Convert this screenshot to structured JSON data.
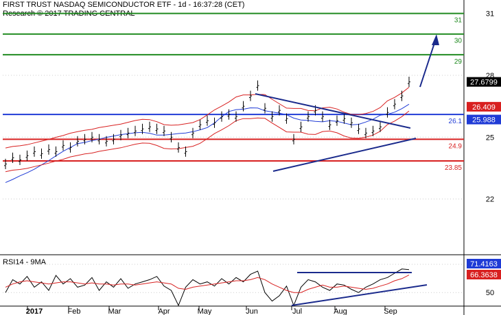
{
  "header": {
    "title": "FIRST TRUST NASDAQ SEMICONDUCTOR ETF - 1d - 16:37:28 (CET)",
    "copyright": "Research © 2017 TRADING CENTRAL"
  },
  "chart_data": [
    {
      "type": "line",
      "panel": "price",
      "grid": false,
      "ylim": [
        19.3,
        31.65
      ],
      "y_ticks": [
        "31",
        "28",
        "25",
        "22"
      ],
      "y_tick_values": [
        31,
        28,
        25,
        22
      ],
      "close": [
        23.7,
        24.0,
        23.9,
        24.1,
        24.3,
        24.2,
        24.4,
        24.3,
        24.6,
        24.5,
        24.8,
        24.9,
        25.0,
        24.9,
        24.8,
        24.9,
        25.1,
        25.2,
        25.3,
        25.4,
        25.5,
        25.4,
        25.3,
        25.0,
        24.5,
        24.3,
        25.2,
        25.6,
        25.8,
        25.7,
        26.0,
        26.1,
        26.0,
        26.5,
        27.0,
        27.5,
        26.4,
        26.0,
        26.3,
        25.9,
        24.9,
        25.5,
        26.0,
        26.3,
        26.0,
        25.6,
        25.8,
        25.9,
        25.7,
        25.4,
        25.2,
        25.3,
        25.5,
        26.2,
        26.6,
        27.0,
        27.68
      ],
      "x_month_labels": [
        "2017",
        "Feb",
        "Mar",
        "Apr",
        "May",
        "Jun",
        "Jul",
        "Aug",
        "Sep"
      ],
      "support_resistance": [
        {
          "label": "31",
          "value": 31.0,
          "color": "#1f8a1f"
        },
        {
          "label": "30",
          "value": 30.0,
          "color": "#1f8a1f"
        },
        {
          "label": "29",
          "value": 29.0,
          "color": "#1f8a1f"
        },
        {
          "label": "26.1",
          "value": 26.1,
          "color": "#1f3bd6"
        },
        {
          "label": "24.9",
          "value": 24.9,
          "color": "#d82020"
        },
        {
          "label": "23.85",
          "value": 23.85,
          "color": "#d82020"
        }
      ],
      "price_tags": [
        {
          "label": "27.6799",
          "value": 27.68,
          "bg": "#000000",
          "fg": "#ffffff"
        },
        {
          "label": "26.409",
          "value": 26.409,
          "bg": "#d82020",
          "fg": "#ffffff"
        },
        {
          "label": "25.988",
          "value": 25.988,
          "bg": "#1f3bd6",
          "fg": "#ffffff"
        }
      ]
    },
    {
      "type": "line",
      "panel": "indicator",
      "title": "RSI14 - 9MA",
      "series": [
        {
          "name": "RSI14",
          "color": "#000000",
          "values": [
            50,
            62,
            58,
            65,
            55,
            60,
            52,
            66,
            58,
            63,
            55,
            57,
            64,
            52,
            60,
            55,
            63,
            54,
            58,
            60,
            62,
            65,
            56,
            52,
            38,
            55,
            62,
            58,
            60,
            56,
            63,
            58,
            64,
            60,
            67,
            70,
            50,
            42,
            47,
            56,
            38,
            55,
            62,
            60,
            55,
            52,
            58,
            57,
            53,
            50,
            55,
            58,
            62,
            64,
            68,
            72,
            71.4
          ]
        },
        {
          "name": "9MA",
          "color": "#d82020",
          "values": [
            55,
            58,
            60,
            61,
            60,
            59,
            58,
            59,
            60,
            60,
            59,
            58,
            59,
            58,
            58,
            57,
            58,
            58,
            57,
            58,
            59,
            60,
            59,
            58,
            54,
            53,
            55,
            56,
            57,
            58,
            59,
            60,
            61,
            61,
            62,
            64,
            62,
            58,
            55,
            52,
            50,
            50,
            53,
            55,
            57,
            55,
            55,
            56,
            55,
            54,
            53,
            54,
            56,
            58,
            61,
            63,
            66.36
          ]
        }
      ],
      "y_tick": "50",
      "y_tick_value": 50,
      "ylim": [
        38,
        84
      ],
      "value_tags": [
        {
          "label": "71.4163",
          "value": 71.4163,
          "bg": "#1f3bd6",
          "fg": "#ffffff"
        },
        {
          "label": "66.3638",
          "value": 66.3638,
          "bg": "#d82020",
          "fg": "#ffffff"
        }
      ]
    }
  ],
  "colors": {
    "price": "#000000",
    "ma_blue": "#1f3bd6",
    "bands_red": "#d82020",
    "support_green": "#1f8a1f",
    "trend_navy": "#1a2a8c",
    "axis": "#000000",
    "grid": "#cccccc"
  }
}
